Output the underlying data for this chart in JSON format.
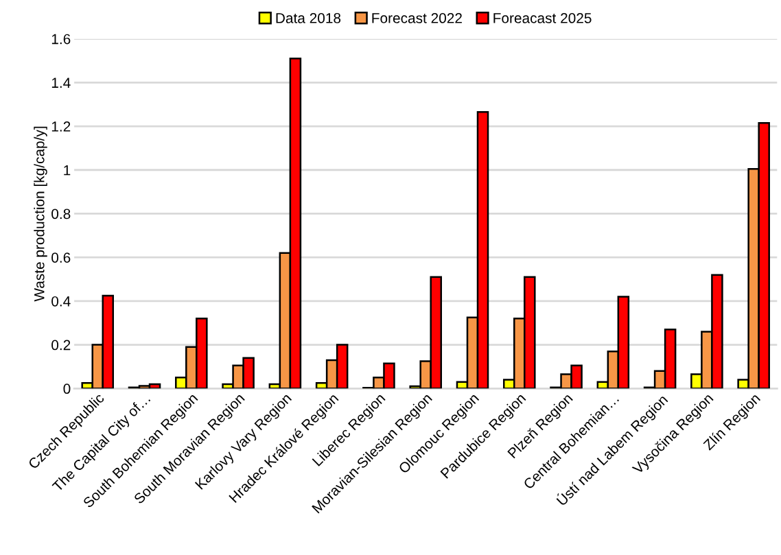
{
  "chart_data": {
    "type": "bar",
    "ylabel": "Waste production [kg/cap/y]",
    "categories": [
      "Czech Republic",
      "The Capital City of…",
      "South Bohemian Region",
      "South Moravian Region",
      "Karlovy Vary Region",
      "Hradec Králové Region",
      "Liberec Region",
      "Moravian-Silesian Region",
      "Olomouc Region",
      "Pardubice Region",
      "Plzeň Region",
      "Central Bohemian…",
      "Ústí nad Labem Region",
      "Vysočina Region",
      "Zlín Region"
    ],
    "series": [
      {
        "name": "Data 2018",
        "color": "#ffff00",
        "values": [
          0.025,
          0.005,
          0.05,
          0.02,
          0.02,
          0.025,
          0.003,
          0.01,
          0.03,
          0.04,
          0.005,
          0.03,
          0.005,
          0.065,
          0.04
        ]
      },
      {
        "name": "Forecast 2022",
        "color": "#f79646",
        "values": [
          0.2,
          0.012,
          0.19,
          0.105,
          0.62,
          0.13,
          0.05,
          0.125,
          0.325,
          0.32,
          0.065,
          0.17,
          0.08,
          0.26,
          1.005
        ]
      },
      {
        "name": "Foreacast 2025",
        "color": "#ff0000",
        "values": [
          0.425,
          0.02,
          0.32,
          0.14,
          1.51,
          0.2,
          0.115,
          0.51,
          1.265,
          0.51,
          0.105,
          0.42,
          0.27,
          0.52,
          1.215
        ]
      }
    ],
    "ylim": [
      0,
      1.6
    ],
    "yticks": [
      0,
      0.2,
      0.4,
      0.6,
      0.8,
      1,
      1.2,
      1.4,
      1.6
    ],
    "grid": "y",
    "legend": "top"
  }
}
